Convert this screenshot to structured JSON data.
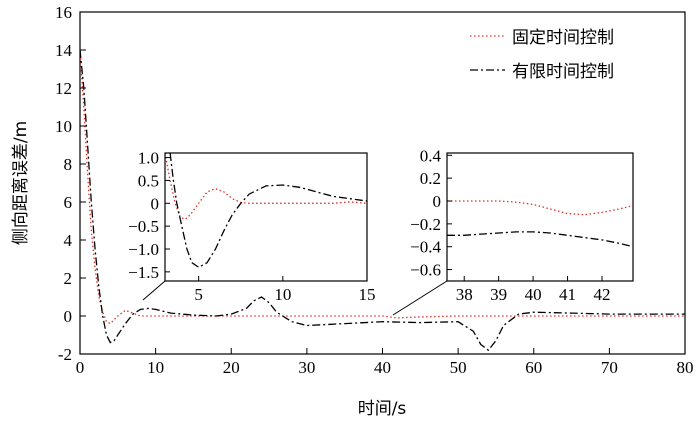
{
  "chart_data": [
    {
      "id": "main",
      "type": "line",
      "xlabel": "时间/s",
      "ylabel": "侧向距离误差/m",
      "xlim": [
        0,
        80
      ],
      "ylim": [
        -2,
        16
      ],
      "x_ticks": [
        0,
        10,
        20,
        30,
        40,
        50,
        60,
        70,
        80
      ],
      "y_ticks": [
        -2,
        0,
        2,
        4,
        6,
        8,
        10,
        12,
        14,
        16
      ],
      "grid": false,
      "legend_position": "top-right",
      "series": [
        {
          "name": "固定时间控制",
          "color": "#e0302a",
          "dash": "dotted",
          "x": [
            0,
            0.5,
            1,
            1.5,
            2,
            2.5,
            3,
            3.5,
            4,
            5,
            6,
            7,
            8,
            10,
            12,
            15,
            20,
            25,
            30,
            35,
            38,
            40,
            42,
            45,
            50,
            55,
            60,
            65,
            70,
            75,
            80
          ],
          "y": [
            14,
            11,
            7.5,
            4.5,
            2.5,
            1.0,
            0.2,
            -0.3,
            -0.4,
            0.0,
            0.3,
            0.15,
            0.0,
            0.0,
            0.0,
            0.0,
            0.0,
            0.0,
            0.0,
            0.0,
            0.0,
            0.0,
            -0.1,
            -0.05,
            0.0,
            0.0,
            0.0,
            0.0,
            0.0,
            0.0,
            0.0
          ]
        },
        {
          "name": "有限时间控制",
          "color": "#000000",
          "dash": "dashdot",
          "x": [
            0,
            0.5,
            1,
            1.5,
            2,
            2.5,
            3,
            3.5,
            4,
            4.5,
            5,
            6,
            7,
            8,
            9,
            10,
            12,
            15,
            18,
            20,
            22,
            23,
            24,
            25,
            26,
            28,
            30,
            35,
            40,
            45,
            50,
            52,
            53,
            54,
            55,
            56,
            58,
            60,
            65,
            70,
            75,
            80
          ],
          "y": [
            14,
            12,
            9,
            6,
            3.5,
            1.5,
            0.0,
            -1.0,
            -1.4,
            -1.3,
            -1.0,
            -0.4,
            0.1,
            0.35,
            0.4,
            0.35,
            0.15,
            0.05,
            0.0,
            0.1,
            0.4,
            0.8,
            1.0,
            0.7,
            0.2,
            -0.3,
            -0.5,
            -0.4,
            -0.3,
            -0.35,
            -0.3,
            -0.8,
            -1.5,
            -1.8,
            -1.3,
            -0.5,
            0.1,
            0.2,
            0.15,
            0.1,
            0.1,
            0.1
          ]
        }
      ]
    },
    {
      "id": "inset-left",
      "type": "line",
      "xlim": [
        3,
        15
      ],
      "ylim": [
        -1.7,
        1.1
      ],
      "x_ticks": [
        5,
        10,
        15
      ],
      "y_ticks": [
        1.0,
        0.5,
        0,
        -0.5,
        -1.0,
        -1.5
      ],
      "y_tick_labels": [
        "1.0",
        "0.5",
        "0",
        "−0.5",
        "−1.0",
        "−1.5"
      ],
      "series": [
        {
          "name": "固定时间控制",
          "color": "#e0302a",
          "dash": "dotted",
          "x": [
            3.0,
            3.3,
            3.6,
            3.9,
            4.2,
            4.5,
            5.0,
            5.5,
            6.0,
            6.5,
            7.0,
            7.5,
            8.0,
            9.0,
            10.0,
            12.0,
            13.0,
            14.0,
            15.0
          ],
          "y": [
            1.1,
            0.5,
            0.0,
            -0.3,
            -0.35,
            -0.25,
            0.0,
            0.25,
            0.32,
            0.25,
            0.1,
            0.02,
            0.0,
            0.0,
            0.0,
            0.0,
            0.0,
            0.03,
            0.0
          ]
        },
        {
          "name": "有限时间控制",
          "color": "#000000",
          "dash": "dashdot",
          "x": [
            3.3,
            3.5,
            3.7,
            4.0,
            4.3,
            4.6,
            5.0,
            5.5,
            6.0,
            6.5,
            7.0,
            7.5,
            8.0,
            9.0,
            10.0,
            11.0,
            12.0,
            13.0,
            14.0,
            15.0
          ],
          "y": [
            1.1,
            0.5,
            0.0,
            -0.5,
            -1.0,
            -1.3,
            -1.4,
            -1.3,
            -1.0,
            -0.6,
            -0.25,
            0.0,
            0.2,
            0.38,
            0.4,
            0.35,
            0.25,
            0.15,
            0.1,
            0.05
          ]
        }
      ]
    },
    {
      "id": "inset-right",
      "type": "line",
      "xlim": [
        37.5,
        42.9
      ],
      "ylim": [
        -0.7,
        0.42
      ],
      "x_ticks": [
        38,
        39,
        40,
        41,
        42
      ],
      "y_ticks": [
        0.4,
        0.2,
        0,
        -0.2,
        -0.4,
        -0.6
      ],
      "y_tick_labels": [
        "0.4",
        "0.2",
        "0",
        "−0.2",
        "−0.4",
        "−0.6"
      ],
      "series": [
        {
          "name": "固定时间控制",
          "color": "#e0302a",
          "dash": "dotted",
          "x": [
            37.5,
            38.0,
            38.5,
            39.0,
            39.5,
            40.0,
            40.5,
            41.0,
            41.5,
            42.0,
            42.5,
            42.9
          ],
          "y": [
            0.0,
            0.0,
            0.0,
            0.0,
            -0.01,
            -0.03,
            -0.07,
            -0.11,
            -0.12,
            -0.1,
            -0.07,
            -0.04
          ]
        },
        {
          "name": "有限时间控制",
          "color": "#000000",
          "dash": "dashdot",
          "x": [
            37.5,
            38.0,
            38.5,
            39.0,
            39.5,
            40.0,
            40.5,
            41.0,
            41.5,
            42.0,
            42.5,
            42.9
          ],
          "y": [
            -0.3,
            -0.3,
            -0.29,
            -0.28,
            -0.27,
            -0.27,
            -0.28,
            -0.3,
            -0.32,
            -0.34,
            -0.37,
            -0.4
          ]
        }
      ]
    }
  ]
}
